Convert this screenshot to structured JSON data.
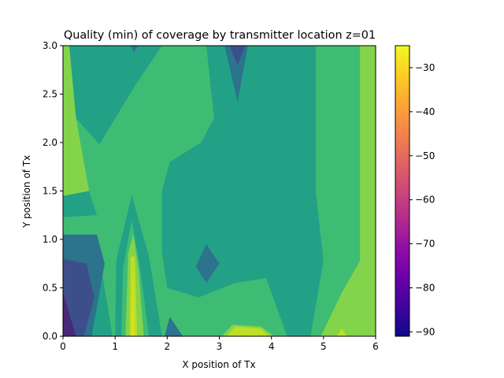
{
  "chart_data": {
    "type": "contour",
    "title": "Quality (min) of coverage by transmitter location z=01",
    "xlabel": "X position of Tx",
    "ylabel": "Y position of Tx",
    "xlim": [
      0,
      6
    ],
    "ylim": [
      0,
      3
    ],
    "x_ticks": [
      "0",
      "1",
      "2",
      "3",
      "4",
      "5",
      "6"
    ],
    "y_ticks": [
      "0.0",
      "0.5",
      "1.0",
      "1.5",
      "2.0",
      "2.5",
      "3.0"
    ],
    "colorbar": {
      "colormap": "plasma",
      "range": [
        -91,
        -25
      ],
      "ticks": [
        "−30",
        "−40",
        "−50",
        "−60",
        "−70",
        "−80",
        "−90"
      ],
      "tick_values": [
        -30,
        -40,
        -50,
        -60,
        -70,
        -80,
        -90
      ]
    },
    "grid": false,
    "level_colors": {
      "base": "#22a187",
      "dark": "#2c738e",
      "darker": "#3c4f8a",
      "darkest": "#482878",
      "mid": "#28ae80",
      "light": "#3fbc73",
      "lighter": "#84d44b",
      "yellow_green": "#bddf26",
      "yellow": "#e2e418"
    },
    "regions": [
      {
        "level": "light",
        "points": [
          [
            0,
            0
          ],
          [
            6,
            0
          ],
          [
            6,
            3
          ],
          [
            0,
            3
          ]
        ]
      },
      {
        "level": "base",
        "points": [
          [
            1.9,
            1.5
          ],
          [
            2.05,
            1.8
          ],
          [
            2.65,
            2.0
          ],
          [
            2.9,
            2.25
          ],
          [
            2.75,
            3.0
          ],
          [
            4.85,
            3.0
          ],
          [
            4.85,
            1.5
          ],
          [
            5.0,
            0.78
          ],
          [
            4.75,
            0.0
          ],
          [
            4.3,
            0.0
          ],
          [
            4.1,
            0.3
          ],
          [
            3.9,
            0.6
          ],
          [
            3.3,
            0.55
          ],
          [
            2.6,
            0.4
          ],
          [
            2.0,
            0.5
          ],
          [
            1.9,
            0.85
          ]
        ]
      },
      {
        "level": "base",
        "points": [
          [
            0.12,
            3.0
          ],
          [
            0.25,
            2.25
          ],
          [
            0.7,
            1.98
          ],
          [
            1.0,
            2.25
          ],
          [
            1.4,
            2.6
          ],
          [
            1.9,
            3.0
          ]
        ]
      },
      {
        "level": "base",
        "points": [
          [
            0.0,
            1.45
          ],
          [
            0.5,
            1.5
          ],
          [
            0.65,
            1.25
          ],
          [
            0.0,
            1.23
          ]
        ]
      },
      {
        "level": "base",
        "points": [
          [
            0.0,
            0.85
          ],
          [
            0.7,
            0.82
          ],
          [
            0.95,
            0.0
          ],
          [
            0.0,
            0.0
          ]
        ]
      },
      {
        "level": "base",
        "points": [
          [
            1.0,
            0.0
          ],
          [
            1.02,
            0.78
          ],
          [
            1.32,
            1.46
          ],
          [
            1.65,
            0.82
          ],
          [
            1.9,
            0.0
          ]
        ]
      },
      {
        "level": "dark",
        "points": [
          [
            0.0,
            1.05
          ],
          [
            0.65,
            1.05
          ],
          [
            0.8,
            0.75
          ],
          [
            0.55,
            0.0
          ],
          [
            0.0,
            0.0
          ]
        ]
      },
      {
        "level": "dark",
        "points": [
          [
            3.1,
            3.0
          ],
          [
            3.35,
            2.42
          ],
          [
            3.55,
            3.0
          ]
        ]
      },
      {
        "level": "dark",
        "points": [
          [
            2.55,
            0.72
          ],
          [
            2.75,
            0.95
          ],
          [
            3.0,
            0.75
          ],
          [
            2.75,
            0.55
          ]
        ]
      },
      {
        "level": "dark",
        "points": [
          [
            1.95,
            0.0
          ],
          [
            2.05,
            0.2
          ],
          [
            2.3,
            0.0
          ]
        ]
      },
      {
        "level": "dark",
        "points": [
          [
            1.3,
            3.0
          ],
          [
            1.36,
            2.93
          ],
          [
            1.45,
            3.0
          ]
        ]
      },
      {
        "level": "darker",
        "points": [
          [
            0.0,
            0.8
          ],
          [
            0.45,
            0.75
          ],
          [
            0.6,
            0.4
          ],
          [
            0.4,
            0.0
          ],
          [
            0.0,
            0.0
          ]
        ]
      },
      {
        "level": "darker",
        "points": [
          [
            3.2,
            3.0
          ],
          [
            3.35,
            2.8
          ],
          [
            3.5,
            3.0
          ]
        ]
      },
      {
        "level": "darkest",
        "points": [
          [
            0.0,
            0.45
          ],
          [
            0.25,
            0.0
          ],
          [
            0.0,
            0.0
          ]
        ]
      },
      {
        "level": "light",
        "points": [
          [
            1.12,
            0.0
          ],
          [
            1.15,
            0.7
          ],
          [
            1.32,
            1.2
          ],
          [
            1.48,
            0.7
          ],
          [
            1.65,
            0.0
          ]
        ]
      },
      {
        "level": "light",
        "points": [
          [
            3.0,
            0.0
          ],
          [
            3.3,
            0.32
          ],
          [
            4.0,
            0.33
          ],
          [
            4.3,
            0.0
          ]
        ]
      },
      {
        "level": "lighter",
        "points": [
          [
            0.0,
            1.45
          ],
          [
            0.5,
            1.5
          ],
          [
            0.25,
            2.25
          ],
          [
            0.12,
            3.0
          ],
          [
            0.0,
            3.0
          ]
        ]
      },
      {
        "level": "lighter",
        "points": [
          [
            5.7,
            3.0
          ],
          [
            6.0,
            3.0
          ],
          [
            6.0,
            0.0
          ],
          [
            4.95,
            0.0
          ],
          [
            5.35,
            0.45
          ],
          [
            5.7,
            0.78
          ]
        ]
      },
      {
        "level": "lighter",
        "points": [
          [
            1.2,
            0.0
          ],
          [
            1.25,
            0.85
          ],
          [
            1.35,
            1.05
          ],
          [
            1.45,
            0.7
          ],
          [
            1.55,
            0.0
          ]
        ]
      },
      {
        "level": "lighter",
        "points": [
          [
            3.05,
            0.0
          ],
          [
            3.25,
            0.12
          ],
          [
            3.8,
            0.1
          ],
          [
            4.05,
            0.0
          ]
        ]
      },
      {
        "level": "yellow_green",
        "points": [
          [
            1.28,
            0.0
          ],
          [
            1.3,
            0.82
          ],
          [
            1.38,
            0.82
          ],
          [
            1.42,
            0.0
          ]
        ]
      },
      {
        "level": "yellow_green",
        "points": [
          [
            3.15,
            0.0
          ],
          [
            3.3,
            0.1
          ],
          [
            3.8,
            0.08
          ],
          [
            3.95,
            0.0
          ]
        ]
      },
      {
        "level": "yellow_green",
        "points": [
          [
            5.25,
            0.0
          ],
          [
            5.35,
            0.08
          ],
          [
            5.45,
            0.0
          ]
        ]
      },
      {
        "level": "yellow",
        "points": [
          [
            1.32,
            0.0
          ],
          [
            1.34,
            0.72
          ],
          [
            1.36,
            0.0
          ]
        ]
      }
    ]
  }
}
